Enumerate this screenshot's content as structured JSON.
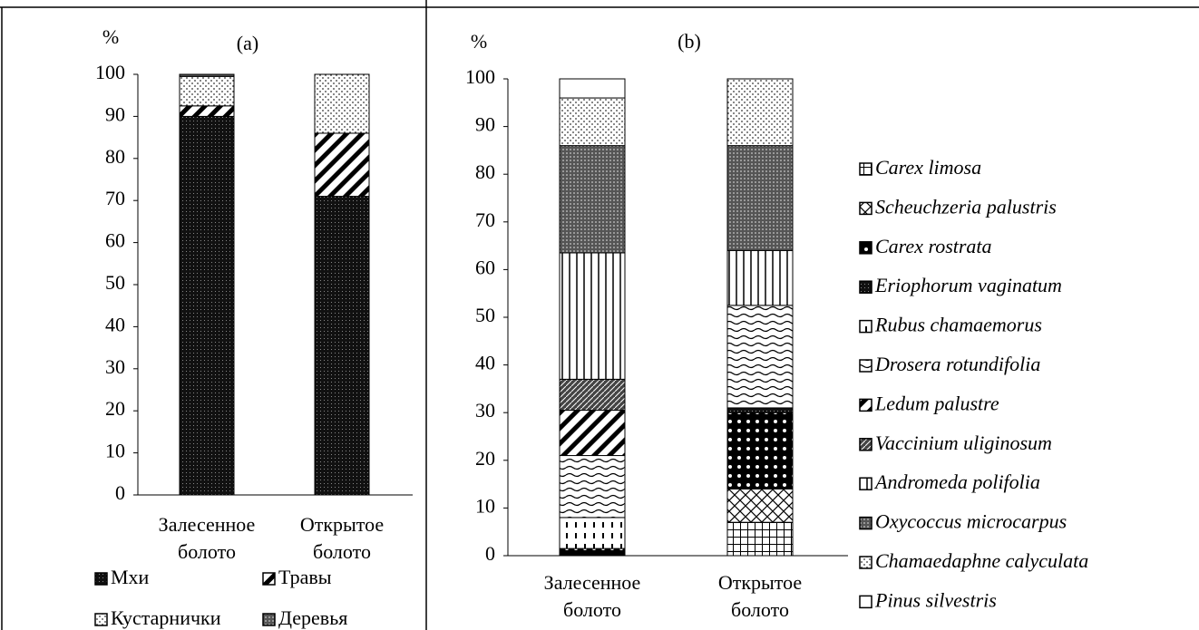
{
  "chart_data": [
    {
      "type": "bar",
      "stacked": true,
      "title": "(a)",
      "y_label": "%",
      "categories": [
        "Залесенное болото",
        "Открытое болото"
      ],
      "series": [
        {
          "name": "Мхи",
          "pattern": "dense",
          "values": [
            90,
            71
          ]
        },
        {
          "name": "Травы",
          "pattern": "diag",
          "values": [
            2.5,
            15
          ]
        },
        {
          "name": "Кустарнички",
          "pattern": "lightdots",
          "values": [
            7,
            14
          ]
        },
        {
          "name": "Деревья",
          "pattern": "gray",
          "values": [
            0.5,
            0
          ]
        }
      ],
      "ylim": [
        0,
        100
      ],
      "yticks": [
        0,
        10,
        20,
        30,
        40,
        50,
        60,
        70,
        80,
        90,
        100
      ],
      "legend": "bottom"
    },
    {
      "type": "bar",
      "stacked": true,
      "title": "(b)",
      "y_label": "%",
      "categories": [
        "Залесенное болото",
        "Открытое болото"
      ],
      "series": [
        {
          "name": "Carex limosa",
          "pattern": "grid",
          "values": [
            0,
            7
          ]
        },
        {
          "name": "Scheuchzeria palustris",
          "pattern": "cross",
          "values": [
            0,
            7
          ]
        },
        {
          "name": "Carex rostrata",
          "pattern": "checker",
          "values": [
            1.5,
            16
          ]
        },
        {
          "name": "Eriophorum vaginatum",
          "pattern": "dense",
          "values": [
            0,
            1
          ]
        },
        {
          "name": "Rubus chamaemorus",
          "pattern": "dashes",
          "values": [
            6.5,
            0
          ]
        },
        {
          "name": "Drosera rotundifolia",
          "pattern": "wavy",
          "values": [
            13,
            21.5
          ]
        },
        {
          "name": "Ledum palustre",
          "pattern": "diag",
          "values": [
            9.5,
            0
          ]
        },
        {
          "name": "Vaccinium uliginosum",
          "pattern": "crossdiag",
          "values": [
            6.5,
            0
          ]
        },
        {
          "name": "Andromeda polifolia",
          "pattern": "vlines",
          "values": [
            26.5,
            11.5
          ]
        },
        {
          "name": "Oxycoccus microcarpus",
          "pattern": "gray",
          "values": [
            22.5,
            22
          ]
        },
        {
          "name": "Chamaedaphne calyculata",
          "pattern": "lightdots",
          "values": [
            10,
            14
          ]
        },
        {
          "name": "Pinus silvestris",
          "pattern": "white",
          "values": [
            4,
            0
          ]
        }
      ],
      "ylim": [
        0,
        100
      ],
      "yticks": [
        0,
        10,
        20,
        30,
        40,
        50,
        60,
        70,
        80,
        90,
        100
      ],
      "legend": "right"
    }
  ]
}
